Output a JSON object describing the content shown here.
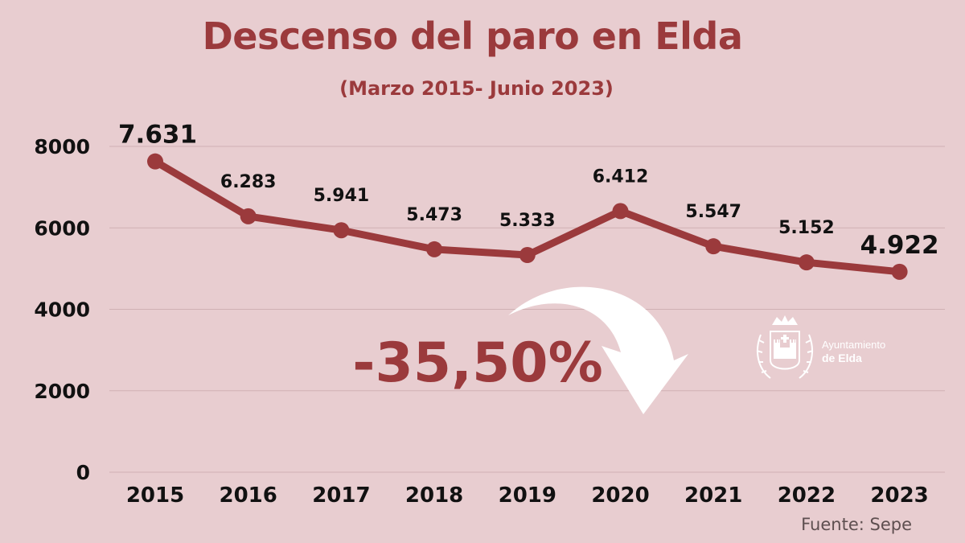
{
  "header": {
    "title": "Descenso del paro en Elda",
    "subtitle": "(Marzo 2015- Junio 2023)"
  },
  "chart_data": {
    "type": "line",
    "title": "Descenso del paro en Elda",
    "subtitle": "(Marzo 2015- Junio 2023)",
    "categories": [
      "2015",
      "2016",
      "2017",
      "2018",
      "2019",
      "2020",
      "2021",
      "2022",
      "2023"
    ],
    "values": [
      7631,
      6283,
      5941,
      5473,
      5333,
      6412,
      5547,
      5152,
      4922
    ],
    "data_labels": [
      "7.631",
      "6.283",
      "5.941",
      "5.473",
      "5.333",
      "6.412",
      "5.547",
      "5.152",
      "4.922"
    ],
    "yticks": [
      "0",
      "2000",
      "4000",
      "6000",
      "8000"
    ],
    "ylim": [
      0,
      8000
    ],
    "xlabel": "",
    "ylabel": "",
    "grid": true,
    "annotation": "-35,50%"
  },
  "logo": {
    "line1": "Ayuntamiento",
    "line2": "de Elda"
  },
  "footer": {
    "source": "Fuente: Sepe"
  },
  "colors": {
    "background": "#e8cdd0",
    "accent": "#9b3a3c",
    "grid": "#d0b0b3",
    "text": "#111111"
  }
}
